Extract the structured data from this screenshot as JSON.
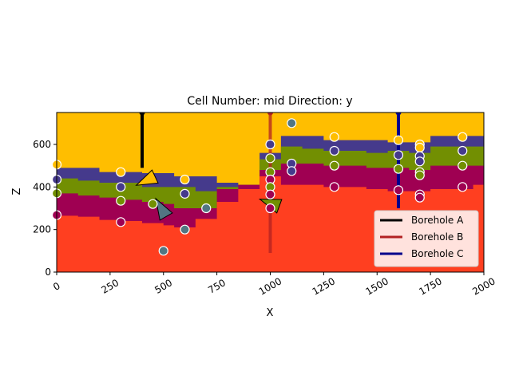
{
  "chart_data": {
    "type": "cross-section",
    "title": "Cell Number: mid Direction: y",
    "xlabel": "X",
    "ylabel": "Z",
    "xlim": [
      0,
      2000
    ],
    "ylim": [
      0,
      750
    ],
    "xticks": [
      0,
      250,
      500,
      750,
      1000,
      1250,
      1500,
      1750,
      2000
    ],
    "yticks": [
      0,
      200,
      400,
      600
    ],
    "grid": false,
    "legend_position": "bottom-right",
    "layers": [
      {
        "color": "#ffbe00",
        "top": [
          750,
          750,
          750,
          750,
          750,
          750,
          750,
          750,
          750,
          750,
          750,
          750,
          750,
          750,
          750,
          750,
          750,
          750,
          750,
          750,
          750
        ]
      },
      {
        "color": "#453a8c",
        "top": [
          490,
          490,
          470,
          470,
          465,
          465,
          450,
          450,
          420,
          410,
          560,
          640,
          640,
          620,
          620,
          620,
          610,
          610,
          640,
          640,
          640
        ]
      },
      {
        "color": "#728f02",
        "top": [
          440,
          430,
          420,
          420,
          400,
          400,
          400,
          380,
          400,
          410,
          530,
          590,
          580,
          570,
          570,
          560,
          570,
          560,
          590,
          590,
          590
        ]
      },
      {
        "color": "#9f0052",
        "top": [
          370,
          360,
          350,
          340,
          330,
          320,
          300,
          300,
          390,
          410,
          480,
          510,
          510,
          500,
          500,
          490,
          490,
          480,
          500,
          500,
          500
        ]
      },
      {
        "color": "#ff3f20",
        "top": [
          265,
          260,
          245,
          240,
          230,
          220,
          210,
          250,
          330,
          390,
          450,
          410,
          410,
          400,
          400,
          390,
          380,
          380,
          390,
          390,
          410
        ]
      }
    ],
    "layer_x": [
      0,
      100,
      200,
      300,
      400,
      500,
      550,
      650,
      750,
      850,
      950,
      1050,
      1150,
      1250,
      1350,
      1450,
      1550,
      1650,
      1750,
      1850,
      1950
    ],
    "points": [
      {
        "x": 0,
        "z": 505,
        "color": "#ffbe00"
      },
      {
        "x": 0,
        "z": 435,
        "color": "#453a8c"
      },
      {
        "x": 0,
        "z": 370,
        "color": "#728f02"
      },
      {
        "x": 0,
        "z": 268,
        "color": "#9f0052"
      },
      {
        "x": 300,
        "z": 470,
        "color": "#ffbe00"
      },
      {
        "x": 300,
        "z": 400,
        "color": "#453a8c"
      },
      {
        "x": 300,
        "z": 335,
        "color": "#728f02"
      },
      {
        "x": 300,
        "z": 235,
        "color": "#9f0052"
      },
      {
        "x": 450,
        "z": 320,
        "color": "#728f02"
      },
      {
        "x": 500,
        "z": 100,
        "color": "#527682"
      },
      {
        "x": 600,
        "z": 435,
        "color": "#ffbe00"
      },
      {
        "x": 600,
        "z": 368,
        "color": "#453a8c"
      },
      {
        "x": 600,
        "z": 200,
        "color": "#527682"
      },
      {
        "x": 700,
        "z": 300,
        "color": "#527682"
      },
      {
        "x": 1000,
        "z": 600,
        "color": "#453a8c"
      },
      {
        "x": 1000,
        "z": 535,
        "color": "#728f02"
      },
      {
        "x": 1000,
        "z": 470,
        "color": "#728f02"
      },
      {
        "x": 1000,
        "z": 435,
        "color": "#9f0052"
      },
      {
        "x": 1000,
        "z": 400,
        "color": "#728f02"
      },
      {
        "x": 1000,
        "z": 365,
        "color": "#9f0052"
      },
      {
        "x": 1000,
        "z": 300,
        "color": "#9f0052"
      },
      {
        "x": 1100,
        "z": 700,
        "color": "#527682"
      },
      {
        "x": 1100,
        "z": 510,
        "color": "#453a8c"
      },
      {
        "x": 1100,
        "z": 475,
        "color": "#453a8c"
      },
      {
        "x": 1300,
        "z": 635,
        "color": "#ffbe00"
      },
      {
        "x": 1300,
        "z": 570,
        "color": "#453a8c"
      },
      {
        "x": 1300,
        "z": 500,
        "color": "#728f02"
      },
      {
        "x": 1300,
        "z": 400,
        "color": "#9f0052"
      },
      {
        "x": 1600,
        "z": 620,
        "color": "#ffbe00"
      },
      {
        "x": 1600,
        "z": 550,
        "color": "#453a8c"
      },
      {
        "x": 1600,
        "z": 485,
        "color": "#728f02"
      },
      {
        "x": 1600,
        "z": 385,
        "color": "#9f0052"
      },
      {
        "x": 1700,
        "z": 600,
        "color": "#ffbe00"
      },
      {
        "x": 1700,
        "z": 585,
        "color": "#ffbe00"
      },
      {
        "x": 1700,
        "z": 545,
        "color": "#453a8c"
      },
      {
        "x": 1700,
        "z": 520,
        "color": "#453a8c"
      },
      {
        "x": 1700,
        "z": 470,
        "color": "#728f02"
      },
      {
        "x": 1700,
        "z": 455,
        "color": "#728f02"
      },
      {
        "x": 1700,
        "z": 365,
        "color": "#9f0052"
      },
      {
        "x": 1700,
        "z": 350,
        "color": "#9f0052"
      },
      {
        "x": 1900,
        "z": 635,
        "color": "#ffbe00"
      },
      {
        "x": 1900,
        "z": 570,
        "color": "#453a8c"
      },
      {
        "x": 1900,
        "z": 500,
        "color": "#728f02"
      },
      {
        "x": 1900,
        "z": 400,
        "color": "#9f0052"
      }
    ],
    "orientations": [
      {
        "x": 420,
        "z": 430,
        "color": "#ffbe00",
        "angle_deg": 25
      },
      {
        "x": 490,
        "z": 300,
        "color": "#527682",
        "angle_deg": -60
      },
      {
        "x": 1000,
        "z": 325,
        "color": "#728f02",
        "angle_deg": -20
      }
    ],
    "boreholes": [
      {
        "name": "Borehole A",
        "x": 400,
        "z_top": 750,
        "z_bottom": 490,
        "color": "#000000",
        "alpha": 1.0
      },
      {
        "name": "Borehole B",
        "x": 1000,
        "z_top": 750,
        "z_bottom": 90,
        "color": "#b22222",
        "alpha": 0.75
      },
      {
        "name": "Borehole C",
        "x": 1600,
        "z_top": 750,
        "z_bottom": 300,
        "color": "#00008b",
        "alpha": 1.0
      }
    ],
    "legend": [
      "Borehole A",
      "Borehole B",
      "Borehole C"
    ]
  }
}
